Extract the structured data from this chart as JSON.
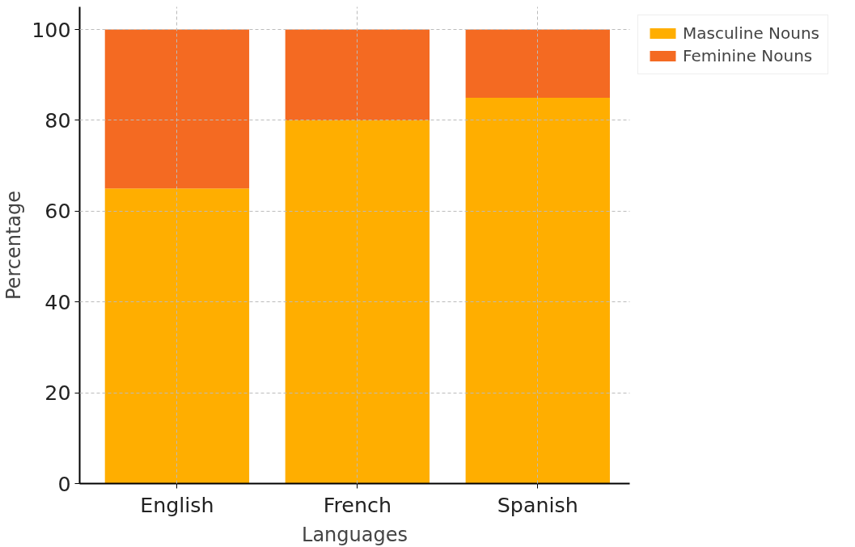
{
  "chart_data": {
    "type": "bar",
    "stacked": true,
    "xlabel": "Languages",
    "ylabel": "Percentage",
    "categories": [
      "English",
      "French",
      "Spanish"
    ],
    "series": [
      {
        "name": "Masculine Nouns",
        "color": "#ffae00",
        "values": [
          65,
          80,
          85
        ]
      },
      {
        "name": "Feminine Nouns",
        "color": "#f46a22",
        "values": [
          35,
          20,
          15
        ]
      }
    ],
    "ylim": [
      0,
      105
    ],
    "yticks": [
      0,
      20,
      40,
      60,
      80,
      100
    ],
    "grid": true,
    "legend": "top right"
  }
}
